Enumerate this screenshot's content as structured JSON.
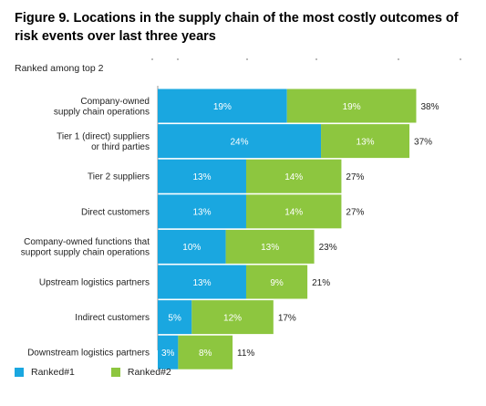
{
  "chart_data": {
    "type": "bar",
    "orientation": "horizontal",
    "stacked": true,
    "title": "Figure 9. Locations in the supply chain of the most costly outcomes of risk events over last three years",
    "subtitle": "Ranked among  top 2",
    "categories": [
      [
        "Company-owned",
        "supply chain operations"
      ],
      [
        "Tier 1 (direct) suppliers",
        "or third parties"
      ],
      [
        "Tier 2 suppliers"
      ],
      [
        "Direct customers"
      ],
      [
        "Company-owned functions that",
        "support supply chain operations"
      ],
      [
        "Upstream logistics partners"
      ],
      [
        "Indirect customers"
      ],
      [
        "Downstream logistics partners"
      ]
    ],
    "series": [
      {
        "name": "Ranked#1",
        "color": "#1aa7e0",
        "values": [
          19,
          24,
          13,
          13,
          10,
          13,
          5,
          3
        ]
      },
      {
        "name": "Ranked#2",
        "color": "#8dc63f",
        "values": [
          19,
          13,
          14,
          14,
          13,
          9,
          12,
          8
        ]
      }
    ],
    "totals": [
      38,
      37,
      27,
      27,
      23,
      21,
      17,
      11
    ],
    "value_suffix": "%",
    "grid": false,
    "legend_position": "bottom-left"
  }
}
